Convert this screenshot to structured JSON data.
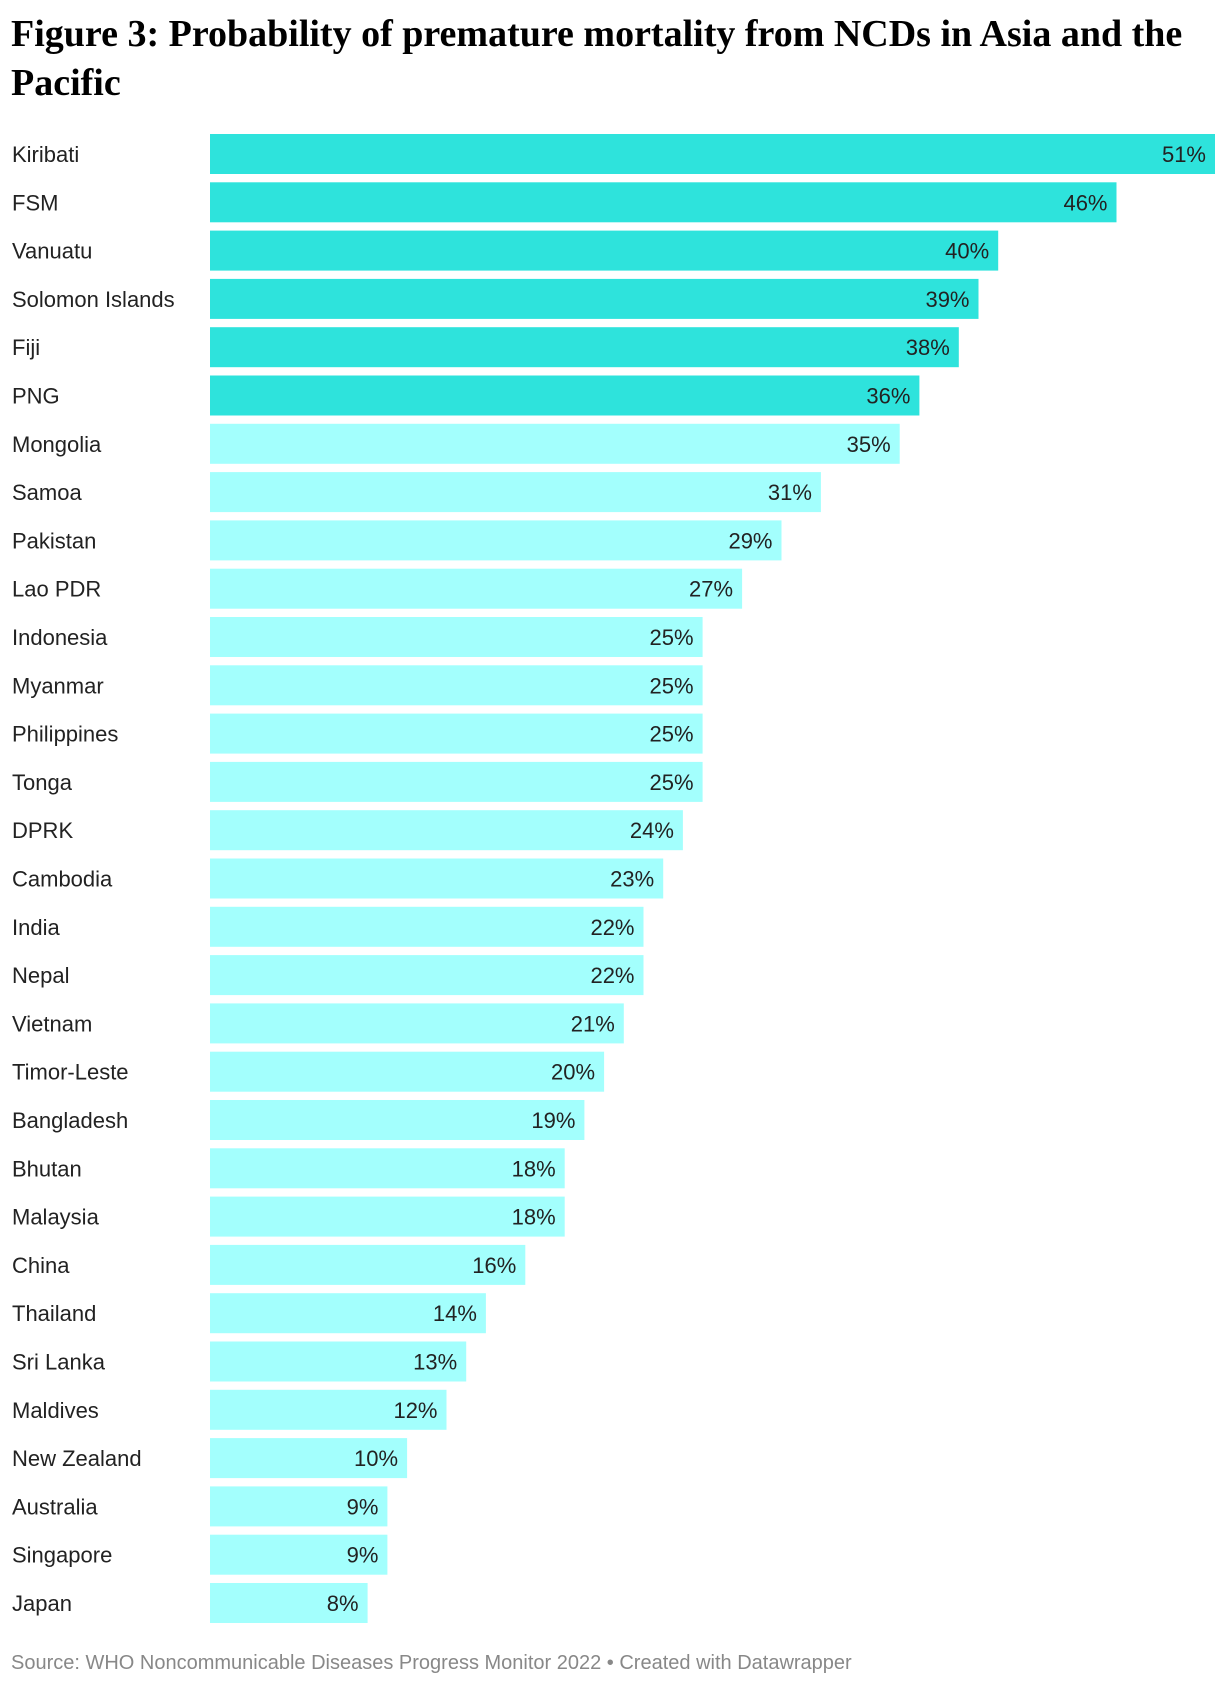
{
  "chart_data": {
    "type": "bar",
    "orientation": "horizontal",
    "title": "Figure 3: Probability of premature mortality from NCDs in Asia and the Pacific",
    "categories": [
      "Kiribati",
      "FSM",
      "Vanuatu",
      "Solomon Islands",
      "Fiji",
      "PNG",
      "Mongolia",
      "Samoa",
      "Pakistan",
      "Lao PDR",
      "Indonesia",
      "Myanmar",
      "Philippines",
      "Tonga",
      "DPRK",
      "Cambodia",
      "India",
      "Nepal",
      "Vietnam",
      "Timor-Leste",
      "Bangladesh",
      "Bhutan",
      "Malaysia",
      "China",
      "Thailand",
      "Sri Lanka",
      "Maldives",
      "New Zealand",
      "Australia",
      "Singapore",
      "Japan"
    ],
    "values": [
      51,
      46,
      40,
      39,
      38,
      36,
      35,
      31,
      29,
      27,
      25,
      25,
      25,
      25,
      24,
      23,
      22,
      22,
      21,
      20,
      19,
      18,
      18,
      16,
      14,
      13,
      12,
      10,
      9,
      9,
      8
    ],
    "labels": [
      "51%",
      "46%",
      "40%",
      "39%",
      "38%",
      "36%",
      "35%",
      "31%",
      "29%",
      "27%",
      "25%",
      "25%",
      "25%",
      "25%",
      "24%",
      "23%",
      "22%",
      "22%",
      "21%",
      "20%",
      "19%",
      "18%",
      "18%",
      "16%",
      "14%",
      "13%",
      "12%",
      "10%",
      "9%",
      "9%",
      "8%"
    ],
    "highlighted_count": 6,
    "colors": {
      "highlight": "#2ee3dc",
      "default": "#a3fffd"
    },
    "xlim": [
      0,
      51
    ],
    "grid": false,
    "legend": "none"
  },
  "footer": {
    "source": "Source: WHO Noncommunicable Diseases Progress Monitor 2022 • Created with Datawrapper"
  }
}
